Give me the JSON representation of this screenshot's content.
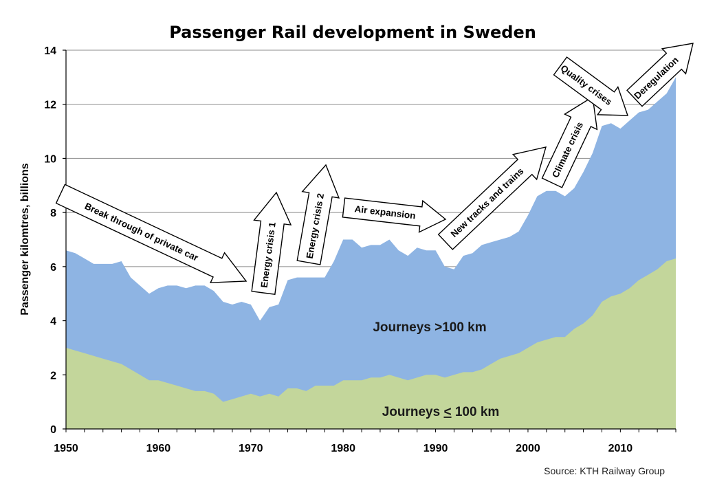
{
  "chart_data": {
    "type": "area",
    "stacked": true,
    "title": "Passenger Rail development in Sweden",
    "ylabel": "Passenger kilomtres, billions",
    "xlabel": "",
    "xlim": [
      1950,
      2016
    ],
    "ylim": [
      0,
      14
    ],
    "xticks": [
      1950,
      1960,
      1970,
      1980,
      1990,
      2000,
      2010
    ],
    "yticks": [
      0,
      2,
      4,
      6,
      8,
      10,
      12,
      14
    ],
    "grid": true,
    "x": [
      1950,
      1951,
      1952,
      1953,
      1954,
      1955,
      1956,
      1957,
      1958,
      1959,
      1960,
      1961,
      1962,
      1963,
      1964,
      1965,
      1966,
      1967,
      1968,
      1969,
      1970,
      1971,
      1972,
      1973,
      1974,
      1975,
      1976,
      1977,
      1978,
      1979,
      1980,
      1981,
      1982,
      1983,
      1984,
      1985,
      1986,
      1987,
      1988,
      1989,
      1990,
      1991,
      1992,
      1993,
      1994,
      1995,
      1996,
      1997,
      1998,
      1999,
      2000,
      2001,
      2002,
      2003,
      2004,
      2005,
      2006,
      2007,
      2008,
      2009,
      2010,
      2011,
      2012,
      2013,
      2014,
      2015,
      2016
    ],
    "series": [
      {
        "name": "Journeys < 100 km",
        "label": "Journeys ",
        "label_underlined": "<",
        "label_suffix": " 100 km",
        "color": "#c3d69b",
        "values": [
          3.0,
          2.9,
          2.8,
          2.7,
          2.6,
          2.5,
          2.4,
          2.2,
          2.0,
          1.8,
          1.8,
          1.7,
          1.6,
          1.5,
          1.4,
          1.4,
          1.3,
          1.0,
          1.1,
          1.2,
          1.3,
          1.2,
          1.3,
          1.2,
          1.5,
          1.5,
          1.4,
          1.6,
          1.6,
          1.6,
          1.8,
          1.8,
          1.8,
          1.9,
          1.9,
          2.0,
          1.9,
          1.8,
          1.9,
          2.0,
          2.0,
          1.9,
          2.0,
          2.1,
          2.1,
          2.2,
          2.4,
          2.6,
          2.7,
          2.8,
          3.0,
          3.2,
          3.3,
          3.4,
          3.4,
          3.7,
          3.9,
          4.2,
          4.7,
          4.9,
          5.0,
          5.2,
          5.5,
          5.7,
          5.9,
          6.2,
          6.3
        ]
      },
      {
        "name": "Journeys >100 km",
        "label": "Journeys >100 km",
        "color": "#8eb4e3",
        "values": [
          3.6,
          3.6,
          3.5,
          3.4,
          3.5,
          3.6,
          3.8,
          3.4,
          3.3,
          3.2,
          3.4,
          3.6,
          3.7,
          3.7,
          3.9,
          3.9,
          3.8,
          3.7,
          3.5,
          3.5,
          3.3,
          2.8,
          3.2,
          3.4,
          4.0,
          4.1,
          4.2,
          4.0,
          4.0,
          4.6,
          5.2,
          5.2,
          4.9,
          4.9,
          4.9,
          5.0,
          4.7,
          4.6,
          4.8,
          4.6,
          4.6,
          4.1,
          3.9,
          4.3,
          4.4,
          4.6,
          4.5,
          4.4,
          4.4,
          4.5,
          4.9,
          5.4,
          5.5,
          5.4,
          5.2,
          5.2,
          5.6,
          6.0,
          6.5,
          6.4,
          6.1,
          6.2,
          6.2,
          6.1,
          6.2,
          6.2,
          6.7
        ]
      }
    ],
    "annotations": [
      {
        "key": "private-car",
        "text": "Break through of private car"
      },
      {
        "key": "energy-crisis-1",
        "text": "Energy crisis 1"
      },
      {
        "key": "energy-crisis-2",
        "text": "Energy crisis 2"
      },
      {
        "key": "air-expansion",
        "text": "Air expansion"
      },
      {
        "key": "new-tracks",
        "text": "New tracks and trains"
      },
      {
        "key": "climate-crisis",
        "text": "Climate crisis"
      },
      {
        "key": "quality-crises",
        "text": "Quality crises"
      },
      {
        "key": "deregulation",
        "text": "Deregulation"
      }
    ],
    "source": "Source: KTH Railway Group"
  }
}
